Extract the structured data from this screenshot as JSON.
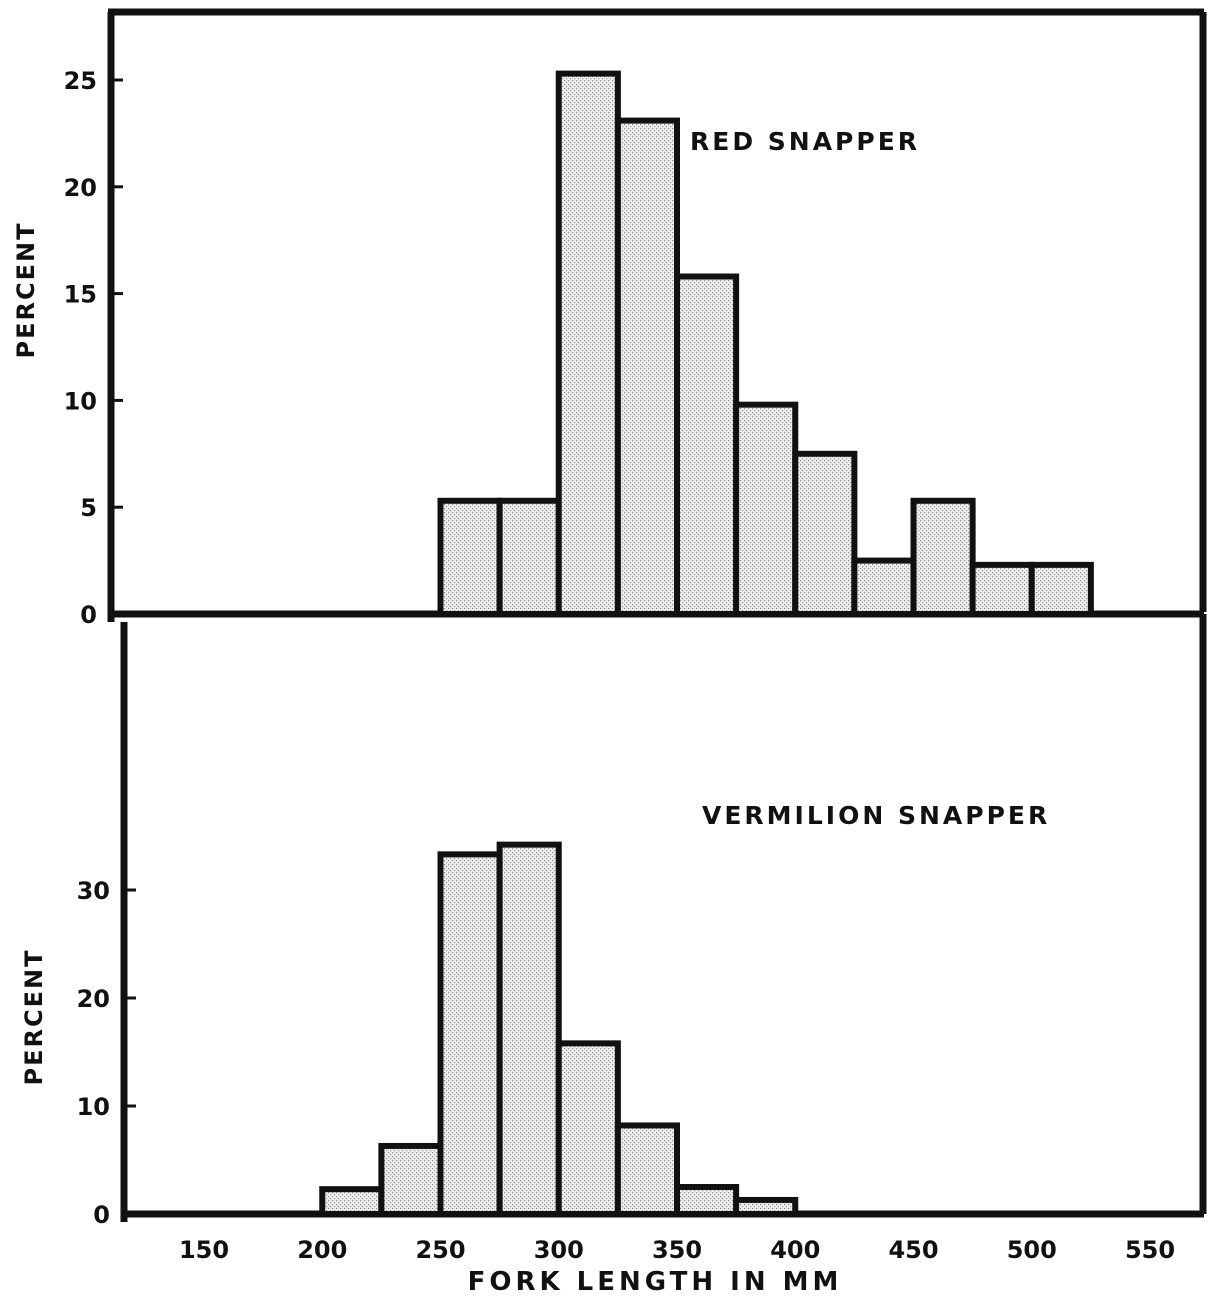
{
  "chart_data": [
    {
      "type": "bar",
      "title": "RED SNAPPER",
      "xlabel": "FORK LENGTH IN MM",
      "ylabel": "PERCENT",
      "bin_width": 25,
      "bin_starts": [
        250,
        275,
        300,
        325,
        350,
        375,
        400,
        425,
        450,
        475,
        500
      ],
      "values": [
        5.3,
        5.3,
        25.3,
        23.1,
        15.8,
        9.8,
        7.5,
        2.5,
        5.3,
        2.3,
        2.3
      ],
      "ylim": [
        0,
        27
      ],
      "yticks": [
        0,
        5,
        10,
        15,
        20,
        25
      ],
      "ytick_labels": [
        "0",
        "5",
        "10",
        "15",
        "20",
        "25"
      ]
    },
    {
      "type": "bar",
      "title": "VERMILION SNAPPER",
      "xlabel": "FORK LENGTH IN MM",
      "ylabel": "PERCENT",
      "bin_width": 25,
      "bin_starts": [
        200,
        225,
        250,
        275,
        300,
        325,
        350,
        375
      ],
      "values": [
        2.3,
        6.3,
        33.3,
        34.2,
        15.8,
        8.2,
        2.5,
        1.3
      ],
      "ylim": [
        0,
        45
      ],
      "yticks": [
        0,
        10,
        20,
        30
      ],
      "ytick_labels": [
        "0",
        "10",
        "20",
        "30"
      ],
      "xticks": [
        150,
        200,
        250,
        300,
        350,
        400,
        450,
        500,
        550
      ],
      "xtick_labels": [
        "150",
        "200",
        "250",
        "300",
        "350",
        "400",
        "450",
        "500",
        "550"
      ]
    }
  ]
}
